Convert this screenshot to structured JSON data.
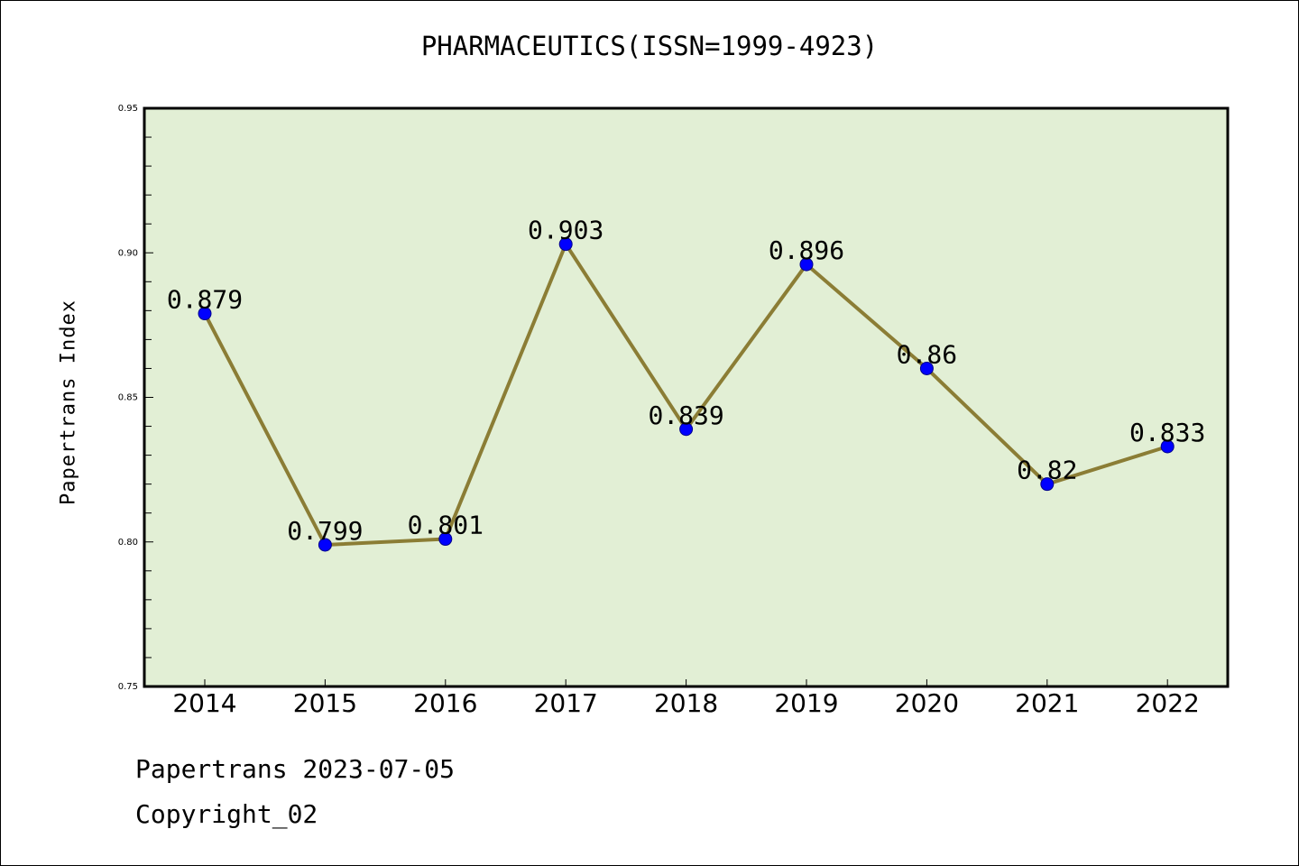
{
  "chart_data": {
    "type": "line",
    "title": "PHARMACEUTICS(ISSN=1999-4923)",
    "xlabel": "",
    "ylabel": "Papertrans Index",
    "categories": [
      "2014",
      "2015",
      "2016",
      "2017",
      "2018",
      "2019",
      "2020",
      "2021",
      "2022"
    ],
    "series": [
      {
        "values": [
          0.879,
          0.799,
          0.801,
          0.903,
          0.839,
          0.896,
          0.86,
          0.82,
          0.833
        ]
      }
    ],
    "data_labels": [
      "0.879",
      "0.799",
      "0.801",
      "0.903",
      "0.839",
      "0.896",
      "0.86",
      "0.82",
      "0.833"
    ],
    "ylim": [
      0.75,
      0.95
    ],
    "yticks": [
      "0.75",
      "0.80",
      "0.85",
      "0.90",
      "0.95"
    ],
    "grid": false,
    "colors": {
      "plot_bg": "#e2efd5",
      "line": "#8b7d35",
      "marker": "#0000ff"
    }
  },
  "footer": {
    "line1": "Papertrans 2023-07-05",
    "line2": "Copyright_02"
  }
}
